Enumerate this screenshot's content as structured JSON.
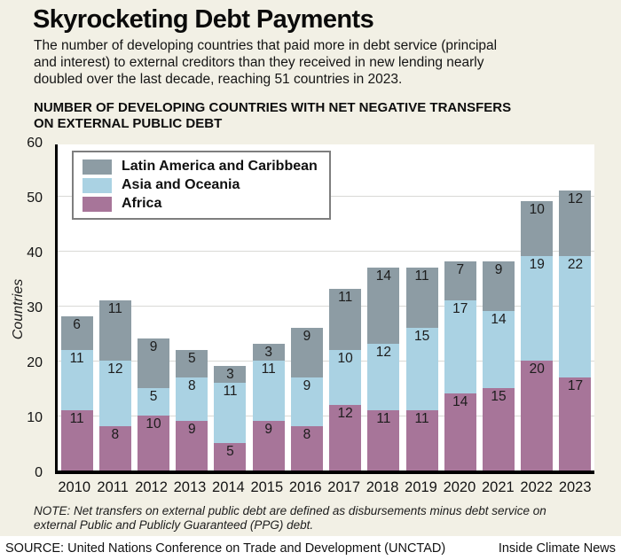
{
  "title": "Skyrocketing Debt Payments",
  "subtitle_lines": {
    "l1": "The number of developing countries that paid more in debt service (principal",
    "l2": "and interest) to external creditors than they received in new lending nearly",
    "l3": "doubled over the last decade, reaching 51 countries in 2023."
  },
  "chart_header_lines": {
    "l1": "NUMBER OF DEVELOPING COUNTRIES WITH NET NEGATIVE TRANSFERS",
    "l2": "ON EXTERNAL PUBLIC DEBT"
  },
  "chart_data": {
    "type": "bar",
    "stacked": true,
    "title": "Number of developing countries with net negative transfers on external public debt",
    "categories": [
      "2010",
      "2011",
      "2012",
      "2013",
      "2014",
      "2015",
      "2016",
      "2017",
      "2018",
      "2019",
      "2020",
      "2021",
      "2022",
      "2023"
    ],
    "series": [
      {
        "name": "Africa",
        "color": "#a77599",
        "values": [
          11,
          8,
          10,
          9,
          5,
          9,
          8,
          12,
          11,
          11,
          14,
          15,
          20,
          17
        ]
      },
      {
        "name": "Asia and Oceania",
        "color": "#aad2e3",
        "values": [
          11,
          12,
          5,
          8,
          11,
          11,
          9,
          10,
          12,
          15,
          17,
          14,
          19,
          22
        ]
      },
      {
        "name": "Latin America and Caribbean",
        "color": "#8d9ca4",
        "values": [
          6,
          11,
          9,
          5,
          3,
          3,
          9,
          11,
          14,
          11,
          7,
          9,
          10,
          12
        ]
      }
    ],
    "totals": [
      28,
      31,
      24,
      22,
      19,
      23,
      26,
      33,
      37,
      37,
      38,
      38,
      49,
      51
    ],
    "xlabel": "",
    "ylabel": "Countries",
    "ylim": [
      0,
      60
    ],
    "yticks": [
      0,
      10,
      20,
      30,
      40,
      50,
      60
    ],
    "grid": true,
    "legend_position": "top-left",
    "legend_order": [
      "Latin America and Caribbean",
      "Asia and Oceania",
      "Africa"
    ]
  },
  "note": "NOTE: Net transfers on external public debt are defined as disbursements minus debt service on external Public and Publicly Guaranteed (PPG) debt.",
  "source": "SOURCE: United Nations Conference on Trade and Development (UNCTAD)",
  "credit": "Inside Climate News"
}
